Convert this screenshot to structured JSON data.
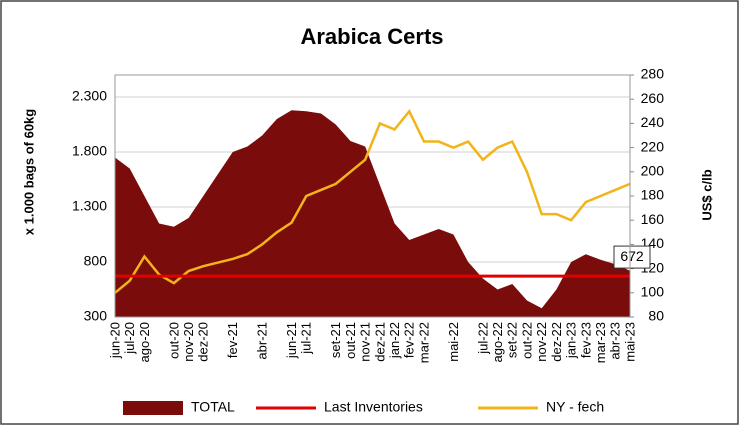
{
  "chart_data": {
    "type": "combo",
    "title": "Arabica Certs",
    "y_label": "x 1.000 bags of 60kg",
    "y2_label": "US$ c/lb",
    "categories": [
      "jun-20",
      "jul-20",
      "ago-20",
      null,
      "out-20",
      "nov-20",
      "dez-20",
      null,
      "fev-21",
      null,
      "abr-21",
      null,
      "jun-21",
      "jul-21",
      null,
      "set-21",
      "out-21",
      "nov-21",
      "dez-21",
      "jan-22",
      "fev-22",
      "mar-22",
      null,
      "mai-22",
      null,
      "jul-22",
      "ago-22",
      "set-22",
      "out-22",
      "nov-22",
      "dez-22",
      "jan-23",
      "fev-23",
      "mar-23",
      "abr-23",
      "mai-23"
    ],
    "series": [
      {
        "name": "TOTAL",
        "kind": "area",
        "color": "#7b0c0c",
        "axis": "y",
        "values": [
          1750,
          1650,
          1400,
          1150,
          1120,
          1200,
          1400,
          1600,
          1800,
          1850,
          1950,
          2100,
          2180,
          2170,
          2150,
          2050,
          1900,
          1850,
          1500,
          1150,
          1000,
          1050,
          1100,
          1050,
          800,
          650,
          550,
          600,
          450,
          380,
          550,
          800,
          870,
          820,
          780,
          720
        ]
      },
      {
        "name": "NY - fech",
        "kind": "line",
        "color": "#f2b418",
        "axis": "y2",
        "values": [
          100,
          110,
          130,
          115,
          108,
          118,
          122,
          125,
          128,
          132,
          140,
          150,
          158,
          180,
          185,
          190,
          200,
          210,
          240,
          235,
          250,
          225,
          225,
          220,
          225,
          210,
          220,
          225,
          200,
          165,
          165,
          160,
          175,
          180,
          185,
          190
        ]
      }
    ],
    "reference_lines": [
      {
        "name": "Last Inventories",
        "value": 672,
        "color": "#e00000"
      }
    ],
    "ylim": [
      300,
      2500
    ],
    "yticks": [
      300,
      800,
      {
        "value": 1300,
        "label": "1.300"
      },
      {
        "value": 1800,
        "label": "1.800"
      },
      {
        "value": 2300,
        "label": "2.300"
      }
    ],
    "y2lim": [
      80,
      280
    ],
    "y2ticks": [
      80,
      100,
      120,
      140,
      160,
      180,
      200,
      220,
      240,
      260,
      280
    ],
    "grid": true
  }
}
